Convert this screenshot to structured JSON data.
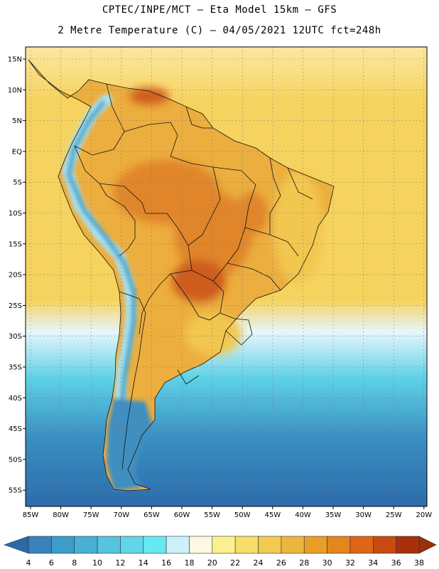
{
  "header": {
    "line1": "CPTEC/INPE/MCT —  Eta Model 15km — GFS",
    "line2": "2 Metre Temperature (C) — 04/05/2021 12UTC fct=248h"
  },
  "axes": {
    "lat_labels": [
      "15N",
      "10N",
      "5N",
      "EQ",
      "5S",
      "10S",
      "15S",
      "20S",
      "25S",
      "30S",
      "35S",
      "40S",
      "45S",
      "50S",
      "55S"
    ],
    "lon_labels": [
      "85W",
      "80W",
      "75W",
      "70W",
      "65W",
      "60W",
      "55W",
      "50W",
      "45W",
      "40W",
      "35W",
      "30W",
      "25W",
      "20W"
    ]
  },
  "colorbar": {
    "labels": [
      "4",
      "6",
      "8",
      "10",
      "12",
      "14",
      "16",
      "18",
      "20",
      "22",
      "24",
      "26",
      "28",
      "30",
      "32",
      "34",
      "36",
      "38"
    ],
    "colors": [
      "#2a6aa8",
      "#3a82bc",
      "#3d9cc8",
      "#47b0d4",
      "#55c4de",
      "#60d6e8",
      "#66e8f2",
      "#cdf1fb",
      "#fdf8e2",
      "#fbf090",
      "#f7de6a",
      "#f2ca52",
      "#ecb53e",
      "#e99e28",
      "#e4861e",
      "#dc6616",
      "#c84a10",
      "#a8300c",
      "#983008"
    ]
  },
  "map_colors": {
    "ocean_north": "#fbe7a1",
    "ocean_mid": "#f6d35e",
    "ocean_temperate": "#e6f6fb",
    "ocean_cool": "#5fd2e6",
    "ocean_south": "#3a8fc2",
    "ocean_far_south": "#2c6cab",
    "land_warm": "#ecae3e",
    "land_hot": "#e0852a",
    "land_hottest": "#cf5c1e",
    "land_north_coast": "#f2c750",
    "andes_cold": "#4aa8d0",
    "andes_mid": "#a8e2f0",
    "patagonia": "#3f8fc0"
  }
}
